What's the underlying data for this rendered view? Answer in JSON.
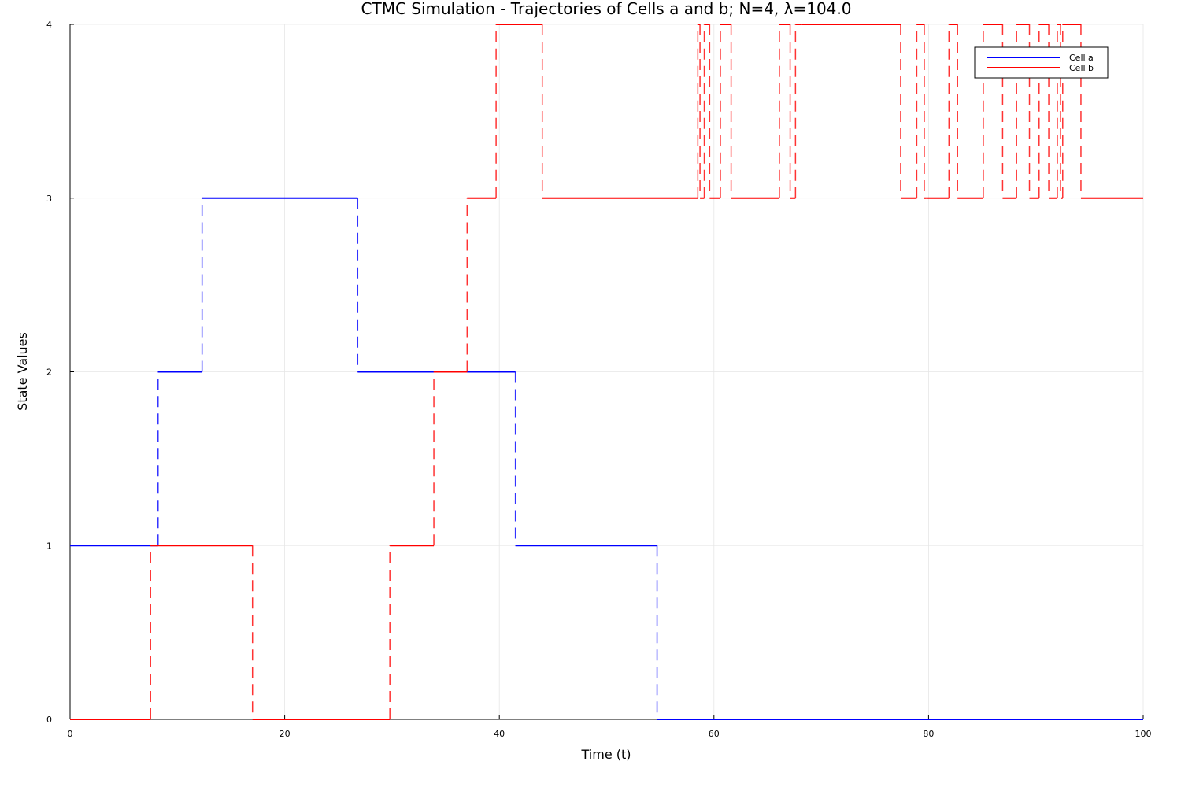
{
  "chart_data": {
    "type": "line",
    "title": "CTMC Simulation - Trajectories of Cells a and b; N=4, λ=104.0",
    "xlabel": "Time (t)",
    "ylabel": "State Values",
    "xlim": [
      0,
      100
    ],
    "ylim": [
      0,
      4
    ],
    "xticks": [
      0,
      20,
      40,
      60,
      80,
      100
    ],
    "yticks": [
      0,
      1,
      2,
      3,
      4
    ],
    "grid": true,
    "legend_position": "top-right",
    "step": true,
    "series": [
      {
        "name": "Cell a",
        "color": "#0000ff",
        "x": [
          0,
          8.2,
          12.3,
          26.8,
          41.5,
          54.7,
          100
        ],
        "y": [
          1,
          2,
          3,
          2,
          1,
          0,
          0
        ]
      },
      {
        "name": "Cell b",
        "color": "#ff0000",
        "x": [
          0,
          7.5,
          17.0,
          29.8,
          33.9,
          37.0,
          39.7,
          44.0,
          58.5,
          58.7,
          59.1,
          59.6,
          60.6,
          61.6,
          66.1,
          67.1,
          67.6,
          68.1,
          77.4,
          78.9,
          79.6,
          79.8,
          81.9,
          82.7,
          85.1,
          86.9,
          88.2,
          89.4,
          90.3,
          91.2,
          92.0,
          92.3,
          92.5,
          94.2,
          100
        ],
        "y": [
          0,
          1,
          0,
          1,
          2,
          3,
          4,
          3,
          4,
          3,
          4,
          3,
          4,
          3,
          4,
          3,
          4,
          4,
          3,
          4,
          3,
          3,
          4,
          3,
          4,
          3,
          4,
          3,
          4,
          3,
          4,
          3,
          4,
          3,
          3
        ]
      }
    ]
  }
}
